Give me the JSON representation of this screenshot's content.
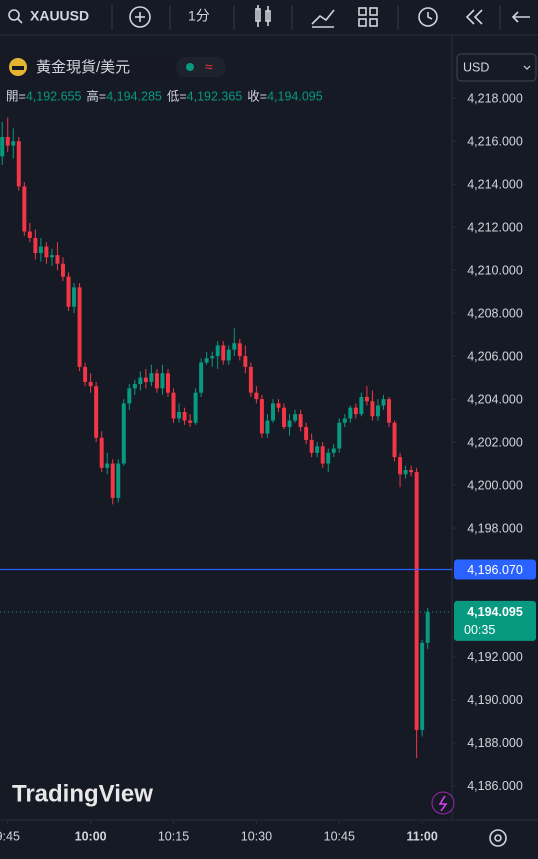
{
  "toolbar": {
    "symbol": "XAUUSD",
    "interval": "1分"
  },
  "chart_data": {
    "type": "candlestick",
    "title": "黃金現貨/美元",
    "currency": "USD",
    "watermark": "TradingView",
    "ohlc_legend": [
      {
        "label": "開=",
        "value": "4,192.655"
      },
      {
        "label": "高=",
        "value": "4,194.285"
      },
      {
        "label": "低=",
        "value": "4,192.365"
      },
      {
        "label": "收=",
        "value": "4,194.095"
      }
    ],
    "up_color": "#089981",
    "down_color": "#f23645",
    "x": [
      584,
      585,
      586,
      587,
      588,
      589,
      590,
      591,
      592,
      593,
      594,
      595,
      596,
      597,
      598,
      599,
      600,
      601,
      602,
      603,
      604,
      605,
      606,
      607,
      608,
      609,
      610,
      611,
      612,
      613,
      614,
      615,
      616,
      617,
      618,
      619,
      620,
      621,
      622,
      623,
      624,
      625,
      626,
      627,
      628,
      629,
      630,
      631,
      632,
      633,
      634,
      635,
      636,
      637,
      638,
      639,
      640,
      641,
      642,
      643,
      644,
      645,
      646,
      647,
      648,
      649,
      650,
      651,
      652,
      653,
      654,
      655,
      656,
      657,
      658,
      659,
      660,
      661
    ],
    "open": [
      4215.3,
      4216.2,
      4215.8,
      4216.0,
      4213.9,
      4211.8,
      4211.5,
      4210.8,
      4211.1,
      4210.6,
      4210.7,
      4210.3,
      4209.7,
      4208.3,
      4209.2,
      4205.5,
      4204.8,
      4204.6,
      4202.2,
      4200.8,
      4201.0,
      4199.4,
      4201.0,
      4203.8,
      4204.5,
      4204.7,
      4205.0,
      4204.8,
      4205.2,
      4204.5,
      4205.2,
      4204.3,
      4203.1,
      4203.4,
      4203.0,
      4202.9,
      4204.3,
      4205.7,
      4205.9,
      4206.0,
      4206.5,
      4205.8,
      4206.3,
      4206.6,
      4206.0,
      4205.5,
      4204.3,
      4204.0,
      4202.4,
      4203.0,
      4203.8,
      4203.6,
      4202.7,
      4203.0,
      4203.3,
      4202.7,
      4202.1,
      4201.5,
      4201.8,
      4201.0,
      4201.5,
      4201.7,
      4202.9,
      4203.1,
      4203.6,
      4203.3,
      4204.1,
      4203.9,
      4203.2,
      4203.7,
      4204.0,
      4202.9,
      4201.3,
      4200.5,
      4200.7,
      4200.6,
      4188.6,
      4192.655
    ],
    "high": [
      4216.9,
      4217.1,
      4216.6,
      4216.2,
      4214.1,
      4212.2,
      4211.9,
      4211.5,
      4211.3,
      4211.0,
      4211.3,
      4210.6,
      4209.9,
      4209.4,
      4209.4,
      4205.7,
      4205.2,
      4204.8,
      4202.5,
      4201.5,
      4201.2,
      4201.2,
      4204.0,
      4204.7,
      4204.9,
      4205.3,
      4205.4,
      4205.6,
      4205.4,
      4205.6,
      4205.4,
      4204.5,
      4203.8,
      4203.6,
      4203.3,
      4204.5,
      4205.9,
      4206.2,
      4206.2,
      4206.7,
      4206.7,
      4206.5,
      4207.3,
      4206.8,
      4206.5,
      4205.7,
      4204.6,
      4204.2,
      4203.3,
      4204.0,
      4204.0,
      4203.8,
      4203.3,
      4203.5,
      4203.5,
      4202.9,
      4202.4,
      4202.0,
      4202.0,
      4201.7,
      4201.9,
      4203.1,
      4203.3,
      4203.7,
      4203.8,
      4204.3,
      4204.6,
      4204.4,
      4204.0,
      4204.2,
      4204.1,
      4203.0,
      4201.5,
      4200.9,
      4200.9,
      4200.8,
      4192.8,
      4194.285
    ],
    "low": [
      4214.9,
      4215.5,
      4215.2,
      4213.7,
      4211.6,
      4211.3,
      4210.5,
      4210.4,
      4210.3,
      4210.2,
      4210.0,
      4209.5,
      4208.1,
      4208.0,
      4205.3,
      4204.6,
      4204.3,
      4202.0,
      4200.6,
      4200.5,
      4199.1,
      4199.2,
      4200.9,
      4203.5,
      4204.2,
      4204.4,
      4204.5,
      4204.6,
      4204.3,
      4204.2,
      4204.1,
      4202.9,
      4202.9,
      4202.8,
      4202.7,
      4202.8,
      4204.1,
      4205.6,
      4205.5,
      4205.4,
      4205.6,
      4205.6,
      4206.0,
      4205.8,
      4205.2,
      4204.1,
      4203.8,
      4202.2,
      4202.2,
      4202.9,
      4203.4,
      4202.6,
      4202.3,
      4202.9,
      4202.5,
      4201.9,
      4201.3,
      4201.3,
      4200.8,
      4200.6,
      4201.3,
      4201.5,
      4202.7,
      4202.9,
      4203.1,
      4203.2,
      4203.7,
      4203.0,
      4203.0,
      4203.5,
      4202.7,
      4201.1,
      4199.9,
      4200.3,
      4200.4,
      4187.3,
      4188.3,
      4192.365
    ],
    "close": [
      4216.2,
      4215.8,
      4216.0,
      4213.9,
      4211.8,
      4211.5,
      4210.8,
      4211.1,
      4210.6,
      4210.7,
      4210.3,
      4209.7,
      4208.3,
      4209.2,
      4205.5,
      4204.8,
      4204.6,
      4202.2,
      4200.8,
      4201.0,
      4199.4,
      4201.0,
      4203.8,
      4204.5,
      4204.7,
      4205.0,
      4204.8,
      4205.2,
      4204.5,
      4205.2,
      4204.3,
      4203.1,
      4203.4,
      4203.0,
      4202.9,
      4204.3,
      4205.7,
      4205.9,
      4206.0,
      4206.5,
      4205.8,
      4206.3,
      4206.6,
      4206.0,
      4205.5,
      4204.3,
      4204.0,
      4202.4,
      4203.0,
      4203.8,
      4203.6,
      4202.7,
      4203.0,
      4203.3,
      4202.7,
      4202.1,
      4201.5,
      4201.8,
      4201.0,
      4201.5,
      4201.7,
      4202.9,
      4203.1,
      4203.6,
      4203.3,
      4204.1,
      4203.9,
      4203.2,
      4203.7,
      4204.0,
      4202.9,
      4201.3,
      4200.5,
      4200.7,
      4200.6,
      4188.6,
      4192.655,
      4194.095
    ],
    "xlim": [
      583.6,
      665.4
    ],
    "xticks": [
      {
        "value": 585,
        "label": "9:45"
      },
      {
        "value": 600,
        "label": "10:00"
      },
      {
        "value": 615,
        "label": "10:15"
      },
      {
        "value": 630,
        "label": "10:30"
      },
      {
        "value": 645,
        "label": "10:45"
      },
      {
        "value": 660,
        "label": "11:00"
      }
    ],
    "ylim": [
      4184.41,
      4220.9
    ],
    "yticks": [
      {
        "value": 4186,
        "label": "4,186.000"
      },
      {
        "value": 4188,
        "label": "4,188.000"
      },
      {
        "value": 4190,
        "label": "4,190.000"
      },
      {
        "value": 4192,
        "label": "4,192.000"
      },
      {
        "value": 4194,
        "label": "4,194.000"
      },
      {
        "value": 4196,
        "label": "4,196.000"
      },
      {
        "value": 4198,
        "label": "4,198.000"
      },
      {
        "value": 4200,
        "label": "4,200.000"
      },
      {
        "value": 4202,
        "label": "4,202.000"
      },
      {
        "value": 4204,
        "label": "4,204.000"
      },
      {
        "value": 4206,
        "label": "4,206.000"
      },
      {
        "value": 4208,
        "label": "4,208.000"
      },
      {
        "value": 4210,
        "label": "4,210.000"
      },
      {
        "value": 4212,
        "label": "4,212.000"
      },
      {
        "value": 4214,
        "label": "4,214.000"
      },
      {
        "value": 4216,
        "label": "4,216.000"
      },
      {
        "value": 4218,
        "label": "4,218.000"
      }
    ],
    "grid": false,
    "price_line": {
      "value": 4196.07,
      "label": "4,196.070",
      "color": "#2962ff"
    },
    "last_price": {
      "value": 4194.095,
      "label": "4,194.095",
      "countdown": "00:35"
    }
  }
}
